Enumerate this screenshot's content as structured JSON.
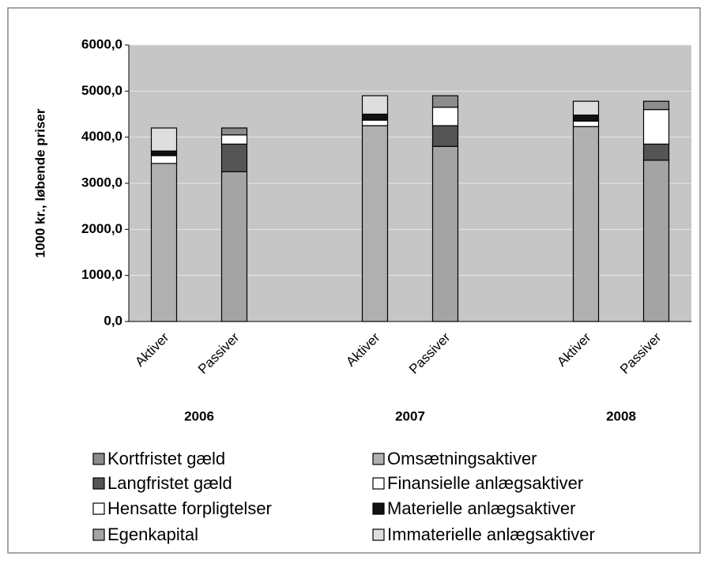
{
  "chart_data": {
    "type": "stacked_bar",
    "ylabel": "1000 kr., løbende priser",
    "categories": [
      "Aktiver",
      "Passiver",
      null,
      "Aktiver",
      "Passiver",
      null,
      "Aktiver",
      "Passiver"
    ],
    "groups": [
      "2006",
      "2007",
      "2008"
    ],
    "ylim": [
      0,
      6000
    ],
    "yticks": [
      {
        "value": 0,
        "label": "0,0"
      },
      {
        "value": 1000,
        "label": "1000,0"
      },
      {
        "value": 2000,
        "label": "2000,0"
      },
      {
        "value": 3000,
        "label": "3000,0"
      },
      {
        "value": 4000,
        "label": "4000,0"
      },
      {
        "value": 5000,
        "label": "5000,0"
      },
      {
        "value": 6000,
        "label": "6000,0"
      }
    ],
    "grid": true,
    "series": [
      {
        "name": "Egenkapital",
        "color": "#a4a4a4",
        "values": [
          null,
          3250,
          null,
          null,
          3800,
          null,
          null,
          3500
        ]
      },
      {
        "name": "Omsætningsaktiver",
        "color": "#b0b0b0",
        "values": [
          3430,
          null,
          null,
          4250,
          null,
          null,
          4230,
          null
        ]
      },
      {
        "name": "Langfristet gæld",
        "color": "#555555",
        "values": [
          null,
          600,
          null,
          null,
          450,
          null,
          null,
          350
        ]
      },
      {
        "name": "Finansielle anlægsaktiver",
        "color": "#ffffff",
        "values": [
          170,
          null,
          null,
          120,
          null,
          null,
          120,
          null
        ]
      },
      {
        "name": "Hensatte forpligtelser",
        "color": "#ffffff",
        "values": [
          null,
          200,
          null,
          null,
          400,
          null,
          null,
          750
        ]
      },
      {
        "name": "Materielle anlægsaktiver",
        "color": "#111111",
        "values": [
          100,
          null,
          null,
          130,
          null,
          null,
          130,
          null
        ]
      },
      {
        "name": "Kortfristet gæld",
        "color": "#8c8c8c",
        "values": [
          null,
          150,
          null,
          null,
          250,
          null,
          null,
          180
        ]
      },
      {
        "name": "Immaterielle anlægsaktiver",
        "color": "#dedede",
        "values": [
          500,
          null,
          null,
          400,
          null,
          null,
          300,
          null
        ]
      }
    ]
  }
}
